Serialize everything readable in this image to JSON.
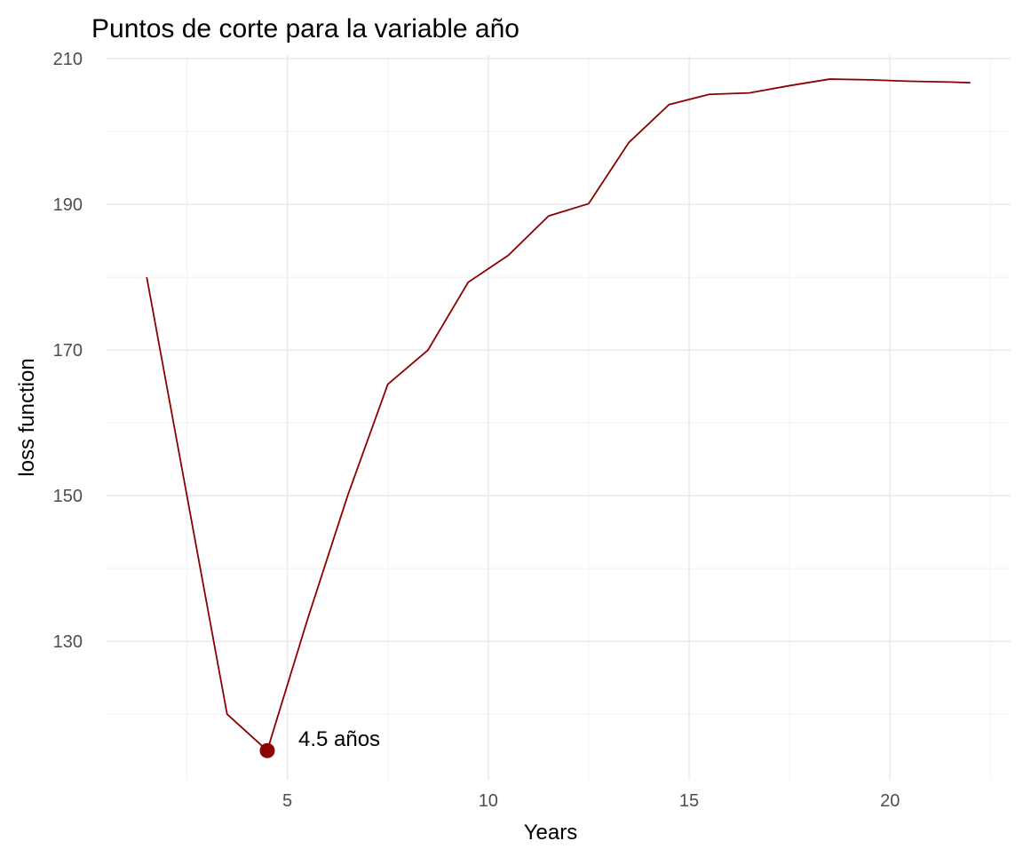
{
  "chart_data": {
    "type": "line",
    "title": "Puntos de corte para la variable año",
    "xlabel": "Years",
    "ylabel": "loss function",
    "xlim": [
      0.5,
      23
    ],
    "ylim": [
      111,
      210.5
    ],
    "x_ticks": [
      5,
      10,
      15,
      20
    ],
    "y_ticks": [
      130,
      150,
      170,
      190,
      210
    ],
    "x_minor": [
      2.5,
      7.5,
      12.5,
      17.5,
      22.5
    ],
    "y_minor": [
      120,
      140,
      160,
      180,
      200
    ],
    "grid": true,
    "line_color": "#8B0000",
    "series": [
      {
        "x": [
          1.5,
          3.5,
          4.5,
          5.5,
          6.5,
          7.5,
          8.5,
          9.5,
          10.5,
          11.5,
          12.5,
          13.5,
          14.5,
          15.5,
          16.5,
          17.5,
          18.5,
          19.5,
          20.5,
          21.5,
          22
        ],
        "values": [
          180,
          120,
          115,
          133,
          150,
          165.3,
          170,
          179.3,
          183,
          188.4,
          190.1,
          198.5,
          203.7,
          205.1,
          205.3,
          206.3,
          207.2,
          207.1,
          206.9,
          206.8,
          206.7
        ]
      }
    ],
    "highlight": {
      "x": 4.5,
      "y": 115,
      "label": "4.5 años"
    }
  }
}
